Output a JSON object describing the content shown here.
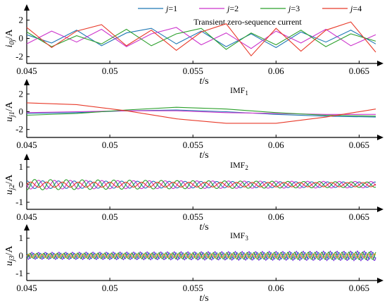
{
  "chart_data": [
    {
      "type": "line",
      "title": "Transient zero-sequence current",
      "xlabel": "t/s",
      "ylabel": "i0j/A",
      "xlim": [
        0.045,
        0.066
      ],
      "ylim": [
        -2.5,
        2.5
      ],
      "xticks": [
        0.045,
        0.05,
        0.055,
        0.06,
        0.065
      ],
      "yticks": [
        -2,
        0,
        2
      ],
      "legend_position": "top",
      "series": [
        {
          "name": "j=1",
          "color": "#1f77b4",
          "t": [
            0.045,
            0.0465,
            0.048,
            0.0495,
            0.051,
            0.0525,
            0.054,
            0.0555,
            0.057,
            0.0585,
            0.06,
            0.0615,
            0.063,
            0.0645,
            0.066
          ],
          "values": [
            0.4,
            -0.5,
            0.9,
            -0.8,
            0.6,
            1.1,
            -0.6,
            0.8,
            -0.9,
            0.5,
            -1.0,
            0.7,
            -0.4,
            0.9,
            -0.6
          ]
        },
        {
          "name": "j=2",
          "color": "#cc33cc",
          "t": [
            0.045,
            0.0465,
            0.048,
            0.0495,
            0.051,
            0.0525,
            0.054,
            0.0555,
            0.057,
            0.0585,
            0.06,
            0.0615,
            0.063,
            0.0645,
            0.066
          ],
          "values": [
            -0.6,
            0.8,
            -0.4,
            1.0,
            -0.9,
            0.5,
            1.2,
            -0.7,
            0.6,
            -1.1,
            0.8,
            -0.5,
            1.0,
            -0.8,
            0.4
          ]
        },
        {
          "name": "j=3",
          "color": "#2ca02c",
          "t": [
            0.045,
            0.0465,
            0.048,
            0.0495,
            0.051,
            0.0525,
            0.054,
            0.0555,
            0.057,
            0.0585,
            0.06,
            0.0615,
            0.063,
            0.0645,
            0.066
          ],
          "values": [
            0.7,
            -0.9,
            0.3,
            -0.6,
            1.0,
            -0.8,
            0.5,
            1.1,
            -1.2,
            0.6,
            -0.7,
            0.9,
            -0.9,
            0.5,
            -0.3
          ]
        },
        {
          "name": "j=4",
          "color": "#e83a2a",
          "t": [
            0.045,
            0.0465,
            0.048,
            0.0495,
            0.051,
            0.0525,
            0.054,
            0.0555,
            0.057,
            0.0585,
            0.06,
            0.0615,
            0.063,
            0.0645,
            0.066
          ],
          "values": [
            1.2,
            -1.0,
            0.8,
            1.5,
            -0.8,
            0.9,
            -1.3,
            0.7,
            1.6,
            -1.9,
            1.1,
            -1.4,
            0.9,
            1.8,
            -1.5
          ]
        }
      ]
    },
    {
      "type": "line",
      "title": "IMF1",
      "xlabel": "t/s",
      "ylabel": "uj1/A",
      "xlim": [
        0.045,
        0.066
      ],
      "ylim": [
        -2.5,
        2.5
      ],
      "xticks": [
        0.045,
        0.05,
        0.055,
        0.06,
        0.065
      ],
      "yticks": [
        -2,
        0,
        2
      ],
      "series": [
        {
          "name": "j=1",
          "color": "#1f77b4",
          "t": [
            0.045,
            0.048,
            0.051,
            0.054,
            0.057,
            0.06,
            0.063,
            0.066
          ],
          "values": [
            -0.2,
            -0.1,
            0.1,
            0.2,
            0.0,
            -0.3,
            -0.5,
            -0.6
          ]
        },
        {
          "name": "j=2",
          "color": "#cc33cc",
          "t": [
            0.045,
            0.048,
            0.051,
            0.054,
            0.057,
            0.06,
            0.063,
            0.066
          ],
          "values": [
            -0.1,
            0.0,
            0.1,
            0.1,
            -0.1,
            -0.2,
            -0.3,
            -0.3
          ]
        },
        {
          "name": "j=3",
          "color": "#2ca02c",
          "t": [
            0.045,
            0.048,
            0.051,
            0.054,
            0.057,
            0.06,
            0.063,
            0.066
          ],
          "values": [
            -0.4,
            -0.2,
            0.2,
            0.5,
            0.3,
            -0.1,
            -0.4,
            -0.5
          ]
        },
        {
          "name": "j=4",
          "color": "#e83a2a",
          "t": [
            0.045,
            0.048,
            0.051,
            0.054,
            0.057,
            0.06,
            0.063,
            0.066
          ],
          "values": [
            1.0,
            0.8,
            0.1,
            -0.8,
            -1.3,
            -1.3,
            -0.6,
            0.3
          ]
        }
      ]
    },
    {
      "type": "line",
      "title": "IMF2",
      "xlabel": "t/s",
      "ylabel": "uj2/A",
      "xlim": [
        0.045,
        0.066
      ],
      "ylim": [
        -1.2,
        1.2
      ],
      "xticks": [
        0.045,
        0.05,
        0.055,
        0.06,
        0.065
      ],
      "yticks": [
        -1,
        0,
        1
      ],
      "series": [
        {
          "name": "j=1",
          "color": "#1f77b4",
          "freq": 1050,
          "phase": 0.0,
          "values": [
            0.22,
            0.15
          ]
        },
        {
          "name": "j=2",
          "color": "#cc33cc",
          "freq": 1050,
          "phase": 1.57,
          "values": [
            0.25,
            0.18
          ]
        },
        {
          "name": "j=3",
          "color": "#2ca02c",
          "freq": 1050,
          "phase": 3.14,
          "values": [
            0.3,
            0.15
          ]
        },
        {
          "name": "j=4",
          "color": "#e83a2a",
          "freq": 1050,
          "phase": 4.71,
          "values": [
            0.15,
            0.12
          ]
        }
      ]
    },
    {
      "type": "line",
      "title": "IMF3",
      "xlabel": "t/s",
      "ylabel": "uj3/A",
      "xlim": [
        0.045,
        0.066
      ],
      "ylim": [
        -1.2,
        1.2
      ],
      "xticks": [
        0.045,
        0.05,
        0.055,
        0.06,
        0.065
      ],
      "yticks": [
        -1,
        0,
        1
      ],
      "series": [
        {
          "name": "j=1",
          "color": "#1f77b4",
          "freq": 2450,
          "phase": 0.0,
          "values": [
            0.15,
            0.2
          ]
        },
        {
          "name": "j=2",
          "color": "#7733dd",
          "freq": 2450,
          "phase": 1.57,
          "values": [
            0.2,
            0.28
          ]
        },
        {
          "name": "j=3",
          "color": "#2ca02c",
          "freq": 2450,
          "phase": 3.14,
          "values": [
            0.15,
            0.22
          ]
        },
        {
          "name": "j=4",
          "color": "#e8a82a",
          "freq": 2450,
          "phase": 4.71,
          "values": [
            0.1,
            0.12
          ]
        }
      ]
    }
  ],
  "legend": [
    {
      "label": "j=1",
      "color": "#1f77b4"
    },
    {
      "label": "j=2",
      "color": "#cc33cc"
    },
    {
      "label": "j=3",
      "color": "#2ca02c"
    },
    {
      "label": "j=4",
      "color": "#e83a2a"
    }
  ]
}
